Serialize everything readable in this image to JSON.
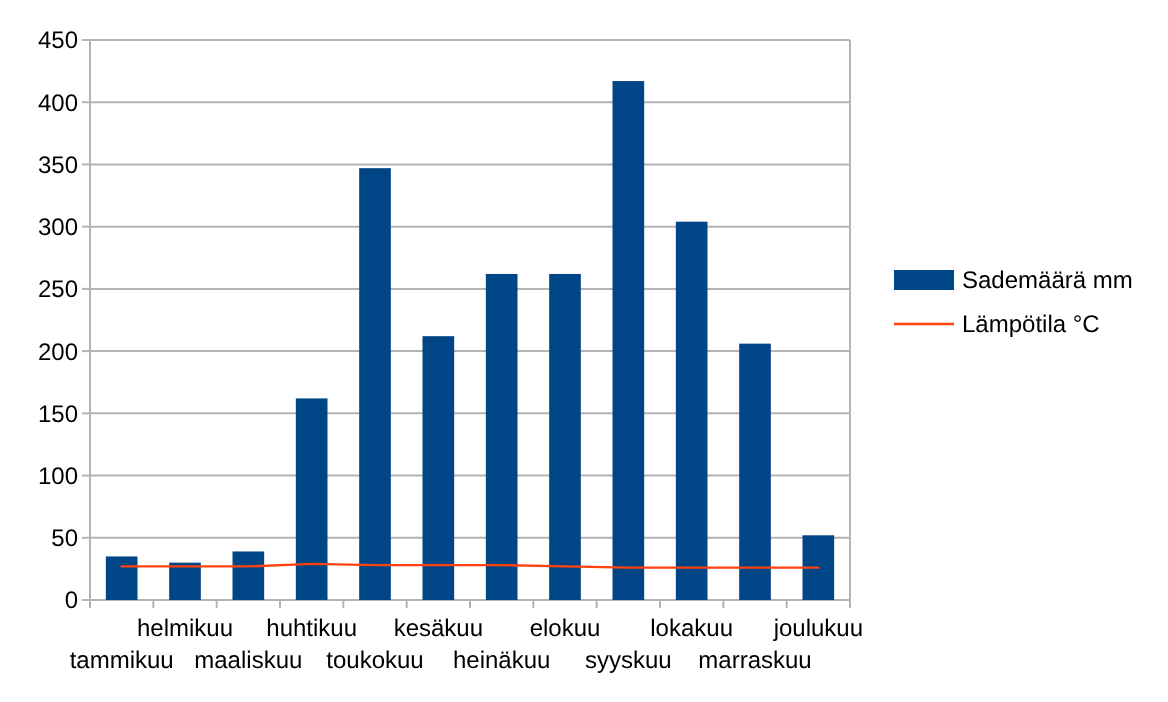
{
  "chart_data": {
    "type": "bar",
    "categories": [
      "tammikuu",
      "helmikuu",
      "maaliskuu",
      "huhtikuu",
      "toukokuu",
      "kesäkuu",
      "heinäkuu",
      "elokuu",
      "syyskuu",
      "lokakuu",
      "marraskuu",
      "joulukuu"
    ],
    "series": [
      {
        "name": "Sademäärä mm",
        "color": "#004586",
        "values": [
          35,
          30,
          39,
          162,
          347,
          212,
          262,
          262,
          417,
          304,
          206,
          52
        ]
      },
      {
        "name": "Lämpötila °C",
        "type": "line",
        "color": "#ff420e",
        "values": [
          27,
          27,
          27,
          29,
          28,
          28,
          28,
          27,
          26,
          26,
          26,
          26
        ]
      }
    ],
    "ylim": [
      0,
      450
    ],
    "yticks": [
      0,
      50,
      100,
      150,
      200,
      250,
      300,
      350,
      400,
      450
    ],
    "grid": "y",
    "legend": "right"
  }
}
